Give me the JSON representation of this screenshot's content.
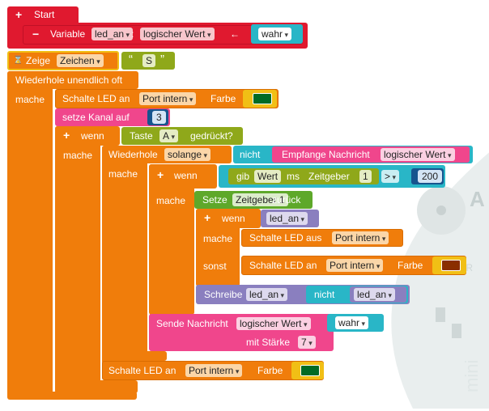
{
  "start": {
    "label": "Start"
  },
  "variable_block": {
    "keyword": "Variable",
    "name": "led_an",
    "colon": ":",
    "type": "logischer Wert",
    "arrow": "←",
    "value": "wahr"
  },
  "show_block": {
    "keyword": "Zeige",
    "type": "Zeichen",
    "char": "S",
    "quote_open": "“",
    "quote_close": "”"
  },
  "forever_block": {
    "label": "Wiederhole unendlich oft",
    "do": "mache"
  },
  "led_on_1": {
    "label": "Schalte LED an",
    "port": "Port intern",
    "color_label": "Farbe",
    "color": "#006b24"
  },
  "set_channel": {
    "label": "setze Kanal auf",
    "value": "3"
  },
  "if_button": {
    "if": "wenn",
    "button": "Taste",
    "which": "A",
    "pressed": "gedrückt?",
    "do": "mache"
  },
  "while_block": {
    "label": "Wiederhole",
    "mode": "solange",
    "not": "nicht",
    "receive": "Empfange Nachricht",
    "receive_type": "logischer Wert",
    "do": "mache"
  },
  "if_timer": {
    "if": "wenn",
    "give": "gib",
    "value": "Wert",
    "ms": "ms",
    "timer": "Zeitgeber",
    "timer_num": "1",
    "op": ">",
    "compare": "200",
    "do": "mache"
  },
  "reset_timer": {
    "label": "Setze",
    "timer": "Zeitgeber 1",
    "back": "zurück"
  },
  "if_led": {
    "if": "wenn",
    "var": "led_an",
    "do": "mache",
    "else": "sonst"
  },
  "led_off": {
    "label": "Schalte LED aus",
    "port": "Port intern"
  },
  "led_on_2": {
    "label": "Schalte LED an",
    "port": "Port intern",
    "color_label": "Farbe",
    "color": "#8a2e00"
  },
  "write_var": {
    "label": "Schreibe",
    "var": "led_an",
    "not": "nicht",
    "var2": "led_an"
  },
  "send_msg": {
    "label": "Sende Nachricht",
    "type": "logischer Wert",
    "value": "wahr",
    "strength_label": "mit Stärke",
    "strength": "7"
  },
  "led_on_3": {
    "label": "Schalte LED an",
    "port": "Port intern",
    "color_label": "Farbe",
    "color": "#006b24"
  },
  "colors": {
    "red": "#e0192f",
    "orange": "#f07d0b",
    "pink": "#f0468c",
    "olive": "#8fa81a",
    "teal": "#29b6c7",
    "green": "#5ea82a",
    "purple": "#8a7fbf"
  },
  "icons": [
    "hourglass-icon",
    "plus-icon",
    "minus-icon",
    "dropdown-arrow-icon",
    "calliope-board-icon"
  ]
}
